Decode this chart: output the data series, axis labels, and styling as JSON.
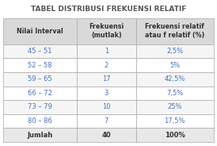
{
  "title": "TABEL DISTRIBUSI FREKUENSI RELATIF",
  "col_headers": [
    "Nilai Interval",
    "Frekuensi\n(mutlak)",
    "Frekuensi relatif\natau f relatif (%)"
  ],
  "rows": [
    [
      "45 – 51",
      "1",
      "2,5%"
    ],
    [
      "52 – 58",
      "2",
      "5%"
    ],
    [
      "59 – 65",
      "17",
      "42,5%"
    ],
    [
      "66 – 72",
      "3",
      "7,5%"
    ],
    [
      "73 – 79",
      "10",
      "25%"
    ],
    [
      "80 – 86",
      "7",
      "17,5%"
    ],
    [
      "Jumlah",
      "40",
      "100%"
    ]
  ],
  "header_bg": "#d9d9d9",
  "row_bg_even": "#f5f5f5",
  "row_bg_odd": "#ffffff",
  "jumlah_bg": "#e8e8e8",
  "border_color": "#aaaaaa",
  "text_color_header": "#333333",
  "text_color_data": "#4472c4",
  "text_color_jumlah": "#333333",
  "title_color": "#555555",
  "title_fontsize": 6.5,
  "header_fontsize": 5.8,
  "data_fontsize": 6.0
}
